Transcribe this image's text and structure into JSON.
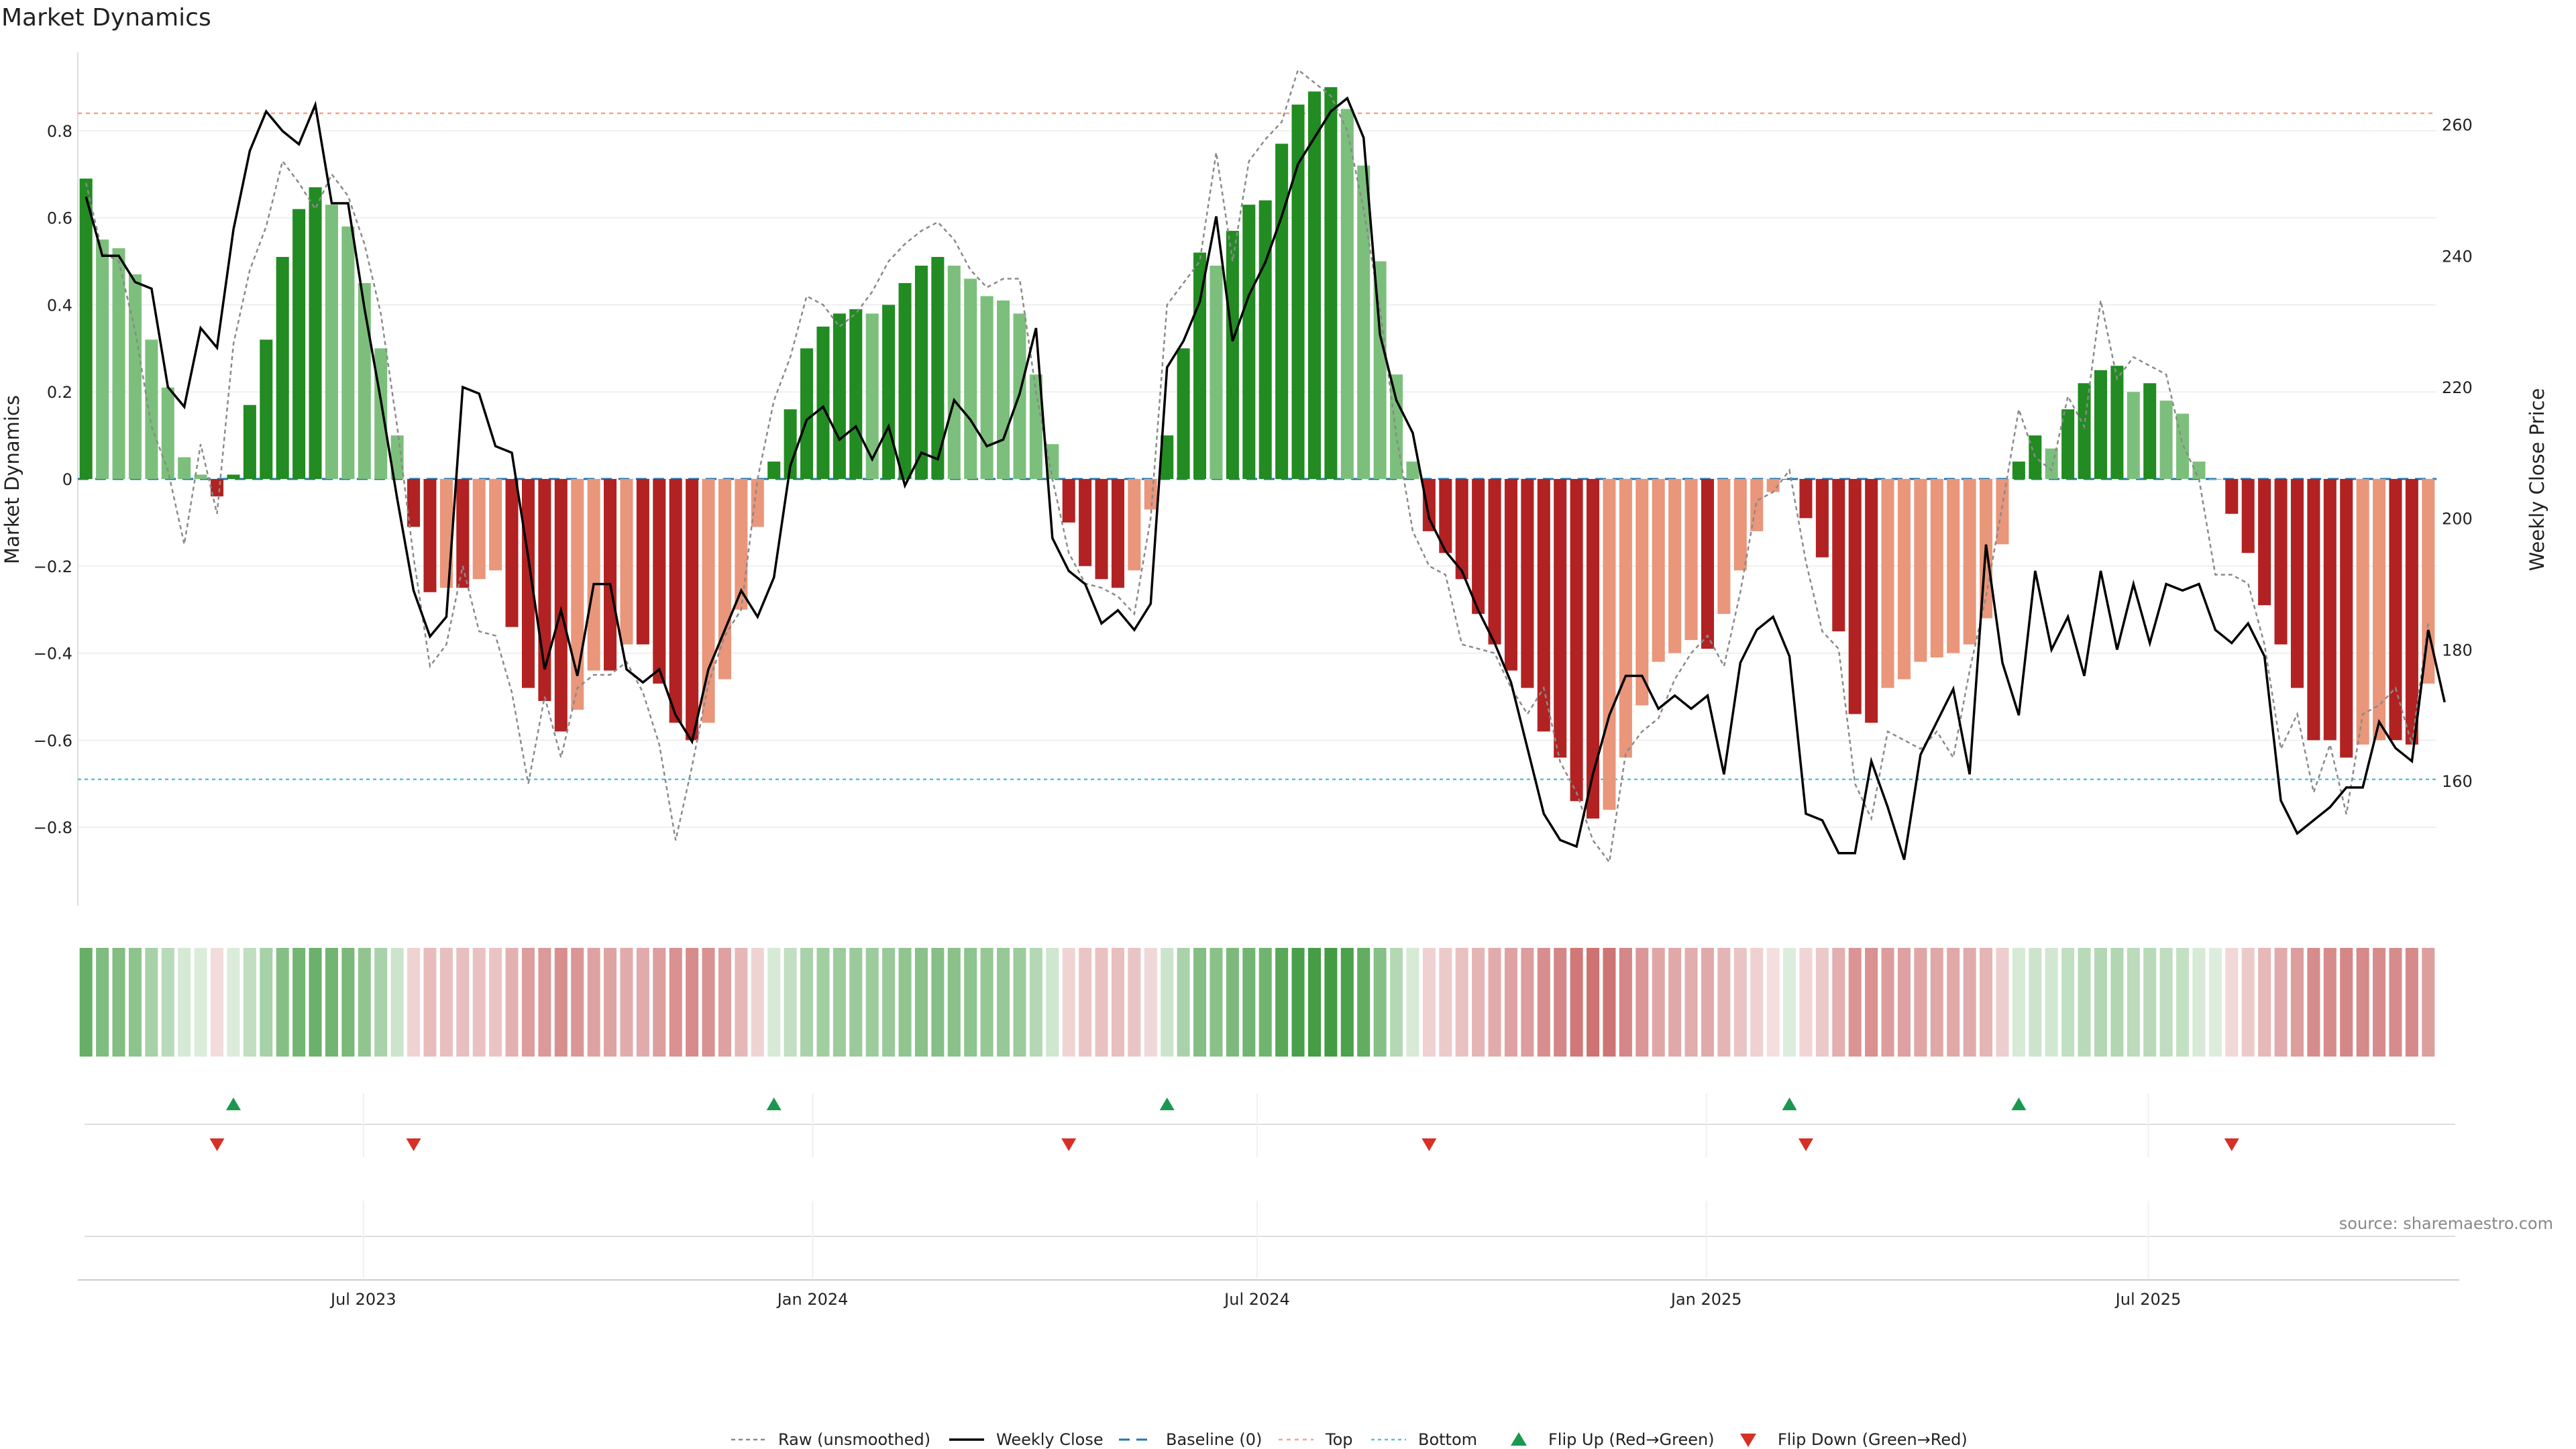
{
  "chart_data": {
    "type": "bar",
    "title": "Market Dynamics",
    "ylabel": "Market Dynamics",
    "y2label": "Weekly Close Price",
    "ylim": [
      -0.98,
      0.98
    ],
    "y2lim": [
      141,
      271
    ],
    "yticks": [
      "0.8",
      "0.6",
      "0.4",
      "0.2",
      "0",
      "−0.2",
      "−0.4",
      "−0.6",
      "−0.8"
    ],
    "ytick_values": [
      0.8,
      0.6,
      0.4,
      0.2,
      0,
      -0.2,
      -0.4,
      -0.6,
      -0.8
    ],
    "y2ticks": [
      "260",
      "240",
      "220",
      "200",
      "180",
      "160"
    ],
    "y2tick_values": [
      260,
      240,
      220,
      200,
      180,
      160
    ],
    "x_start": "2023-03-06",
    "x_end": "2025-10-27",
    "xticks": [
      {
        "label": "Jul 2023",
        "date": "2023-07-01"
      },
      {
        "label": "Jan 2024",
        "date": "2024-01-01"
      },
      {
        "label": "Jul 2024",
        "date": "2024-07-01"
      },
      {
        "label": "Jan 2025",
        "date": "2025-01-01"
      },
      {
        "label": "Jul 2025",
        "date": "2025-07-01"
      }
    ],
    "top_level": 0.84,
    "bottom_level": -0.69,
    "baseline": 0,
    "dynamics": [
      0.69,
      0.55,
      0.53,
      0.47,
      0.32,
      0.21,
      0.05,
      0.01,
      -0.04,
      0.01,
      0.17,
      0.32,
      0.51,
      0.62,
      0.67,
      0.63,
      0.58,
      0.45,
      0.3,
      0.1,
      -0.11,
      -0.26,
      -0.25,
      -0.25,
      -0.23,
      -0.21,
      -0.34,
      -0.48,
      -0.51,
      -0.58,
      -0.53,
      -0.44,
      -0.44,
      -0.38,
      -0.38,
      -0.47,
      -0.56,
      -0.6,
      -0.56,
      -0.46,
      -0.3,
      -0.11,
      0.04,
      0.16,
      0.3,
      0.35,
      0.38,
      0.39,
      0.38,
      0.4,
      0.45,
      0.49,
      0.51,
      0.49,
      0.46,
      0.42,
      0.41,
      0.38,
      0.24,
      0.08,
      -0.1,
      -0.2,
      -0.23,
      -0.25,
      -0.21,
      -0.07,
      0.1,
      0.3,
      0.52,
      0.49,
      0.57,
      0.63,
      0.64,
      0.77,
      0.86,
      0.89,
      0.9,
      0.85,
      0.72,
      0.5,
      0.24,
      0.04,
      -0.12,
      -0.17,
      -0.23,
      -0.31,
      -0.38,
      -0.44,
      -0.48,
      -0.58,
      -0.64,
      -0.74,
      -0.78,
      -0.76,
      -0.64,
      -0.52,
      -0.42,
      -0.4,
      -0.37,
      -0.39,
      -0.31,
      -0.21,
      -0.12,
      -0.03,
      0,
      -0.09,
      -0.18,
      -0.35,
      -0.54,
      -0.56,
      -0.48,
      -0.46,
      -0.42,
      -0.41,
      -0.4,
      -0.38,
      -0.32,
      -0.15,
      0.04,
      0.1,
      0.07,
      0.16,
      0.22,
      0.25,
      0.26,
      0.2,
      0.22,
      0.18,
      0.15,
      0.04,
      0,
      -0.08,
      -0.17,
      -0.29,
      -0.38,
      -0.48,
      -0.6,
      -0.6,
      -0.64,
      -0.61,
      -0.6,
      -0.6,
      -0.61,
      -0.47
    ],
    "raw": [
      0.68,
      0.52,
      0.5,
      0.34,
      0.12,
      0.02,
      -0.15,
      0.08,
      -0.08,
      0.31,
      0.48,
      0.58,
      0.73,
      0.68,
      0.62,
      0.7,
      0.65,
      0.54,
      0.38,
      0.12,
      -0.18,
      -0.43,
      -0.38,
      -0.2,
      -0.35,
      -0.36,
      -0.49,
      -0.7,
      -0.5,
      -0.64,
      -0.48,
      -0.45,
      -0.45,
      -0.42,
      -0.49,
      -0.61,
      -0.83,
      -0.66,
      -0.47,
      -0.36,
      -0.3,
      0.0,
      0.18,
      0.28,
      0.42,
      0.4,
      0.35,
      0.38,
      0.43,
      0.5,
      0.54,
      0.57,
      0.59,
      0.55,
      0.48,
      0.44,
      0.46,
      0.46,
      0.2,
      0.0,
      -0.17,
      -0.24,
      -0.25,
      -0.27,
      -0.31,
      -0.09,
      0.4,
      0.45,
      0.5,
      0.75,
      0.5,
      0.73,
      0.78,
      0.82,
      0.94,
      0.91,
      0.88,
      0.8,
      0.62,
      0.39,
      0.1,
      -0.12,
      -0.2,
      -0.22,
      -0.38,
      -0.39,
      -0.4,
      -0.48,
      -0.54,
      -0.48,
      -0.65,
      -0.72,
      -0.83,
      -0.88,
      -0.63,
      -0.58,
      -0.55,
      -0.46,
      -0.4,
      -0.36,
      -0.43,
      -0.26,
      -0.05,
      -0.03,
      0.02,
      -0.19,
      -0.35,
      -0.39,
      -0.7,
      -0.78,
      -0.58,
      -0.6,
      -0.62,
      -0.58,
      -0.64,
      -0.44,
      -0.27,
      -0.06,
      0.16,
      0.05,
      0.02,
      0.19,
      0.12,
      0.41,
      0.23,
      0.28,
      0.26,
      0.24,
      0.08,
      0.0,
      -0.22,
      -0.22,
      -0.24,
      -0.38,
      -0.62,
      -0.54,
      -0.72,
      -0.61,
      -0.77,
      -0.54,
      -0.52,
      -0.48,
      -0.61,
      -0.33
    ],
    "weekly_close": [
      249,
      240,
      240,
      236,
      235,
      220,
      217,
      229,
      226,
      244,
      256,
      262,
      259,
      257,
      263,
      248,
      248,
      232,
      218,
      203,
      189,
      182,
      185,
      220,
      219,
      211,
      210,
      194,
      177,
      186,
      176,
      190,
      190,
      177,
      175,
      177,
      170,
      166,
      177,
      183,
      189,
      185,
      191,
      208,
      215,
      217,
      212,
      214,
      209,
      214,
      205,
      210,
      209,
      218,
      215,
      211,
      212,
      219,
      229,
      197,
      192,
      190,
      184,
      186,
      183,
      187,
      223,
      227,
      233,
      246,
      227,
      234,
      239,
      246,
      254,
      258,
      262,
      264,
      258,
      228,
      218,
      213,
      200,
      195,
      192,
      186,
      181,
      175,
      165,
      155,
      151,
      150,
      161,
      170,
      176,
      176,
      171,
      173,
      171,
      173,
      161,
      178,
      183,
      185,
      179,
      155,
      154,
      149,
      149,
      163,
      156,
      148,
      164,
      169,
      174,
      161,
      196,
      178,
      170,
      192,
      180,
      185,
      176,
      192,
      180,
      190,
      181,
      190,
      189,
      190,
      183,
      181,
      184,
      179,
      157,
      152,
      154,
      156,
      159,
      159,
      169,
      165,
      163,
      183,
      172
    ],
    "legend": [
      "Raw (unsmoothed)",
      "Weekly Close",
      "Baseline (0)",
      "Top",
      "Bottom",
      "Flip Up (Red→Green)",
      "Flip Down (Green→Red)"
    ],
    "colors": {
      "strong_up": "#228b22",
      "weak_up": "#7cbf7c",
      "strong_down": "#b22222",
      "weak_down": "#e9967a",
      "raw": "#8a8a8a",
      "close": "#000000",
      "baseline": "#1f77b4",
      "top": "#f4a582",
      "bottom": "#5bc0de",
      "flip_up": "#1a9850",
      "flip_down": "#d73027"
    }
  },
  "source_text": "source: sharemaestro.com"
}
